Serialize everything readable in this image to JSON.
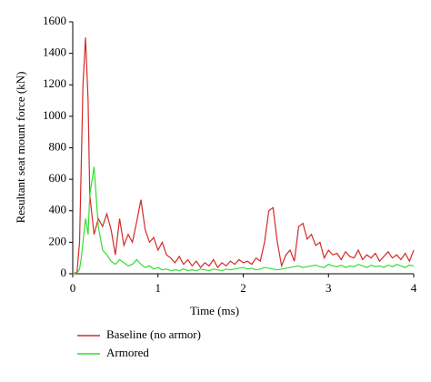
{
  "chart_data": {
    "type": "line",
    "x_label": "Time (ms)",
    "y_label": "Resultant seat mount force (kN)",
    "x": [
      0,
      0.05,
      0.08,
      0.1,
      0.12,
      0.15,
      0.18,
      0.2,
      0.25,
      0.3,
      0.35,
      0.4,
      0.45,
      0.5,
      0.55,
      0.6,
      0.65,
      0.7,
      0.75,
      0.8,
      0.85,
      0.9,
      0.95,
      1.0,
      1.05,
      1.1,
      1.15,
      1.2,
      1.25,
      1.3,
      1.35,
      1.4,
      1.45,
      1.5,
      1.55,
      1.6,
      1.65,
      1.7,
      1.75,
      1.8,
      1.85,
      1.9,
      1.95,
      2.0,
      2.05,
      2.1,
      2.15,
      2.2,
      2.25,
      2.3,
      2.35,
      2.4,
      2.45,
      2.5,
      2.55,
      2.6,
      2.65,
      2.7,
      2.75,
      2.8,
      2.85,
      2.9,
      2.95,
      3.0,
      3.05,
      3.1,
      3.15,
      3.2,
      3.25,
      3.3,
      3.35,
      3.4,
      3.45,
      3.5,
      3.55,
      3.6,
      3.65,
      3.7,
      3.75,
      3.8,
      3.85,
      3.9,
      3.95,
      4.0
    ],
    "series": [
      {
        "name": "Baseline (no armor)",
        "color": "#d42a2a",
        "values": [
          0,
          10,
          200,
          700,
          1200,
          1500,
          1100,
          500,
          250,
          350,
          300,
          380,
          280,
          120,
          350,
          180,
          250,
          200,
          330,
          470,
          280,
          200,
          230,
          150,
          200,
          120,
          100,
          70,
          110,
          60,
          90,
          50,
          80,
          40,
          70,
          50,
          90,
          40,
          70,
          50,
          80,
          60,
          90,
          70,
          80,
          60,
          100,
          80,
          200,
          400,
          420,
          200,
          50,
          120,
          150,
          80,
          300,
          320,
          220,
          250,
          180,
          200,
          100,
          150,
          120,
          130,
          90,
          140,
          110,
          100,
          150,
          90,
          120,
          100,
          130,
          80,
          110,
          140,
          100,
          120,
          90,
          130,
          80,
          150
        ]
      },
      {
        "name": "Armored",
        "color": "#33dd33",
        "values": [
          0,
          5,
          30,
          100,
          200,
          350,
          250,
          500,
          680,
          300,
          150,
          120,
          80,
          60,
          90,
          70,
          50,
          60,
          90,
          60,
          40,
          50,
          30,
          40,
          25,
          30,
          20,
          25,
          20,
          30,
          20,
          25,
          20,
          30,
          25,
          20,
          30,
          25,
          20,
          30,
          25,
          30,
          35,
          40,
          30,
          35,
          25,
          30,
          40,
          35,
          30,
          25,
          30,
          35,
          40,
          45,
          50,
          40,
          45,
          50,
          55,
          45,
          40,
          60,
          50,
          45,
          55,
          40,
          50,
          45,
          60,
          50,
          40,
          55,
          45,
          50,
          40,
          55,
          45,
          60,
          50,
          40,
          55,
          50
        ]
      }
    ],
    "xlim": [
      0,
      4
    ],
    "xticks": [
      0,
      1,
      2,
      3,
      4
    ],
    "ylim": [
      0,
      1600
    ],
    "yticks": [
      0,
      200,
      400,
      600,
      800,
      1000,
      1200,
      1400,
      1600
    ]
  }
}
